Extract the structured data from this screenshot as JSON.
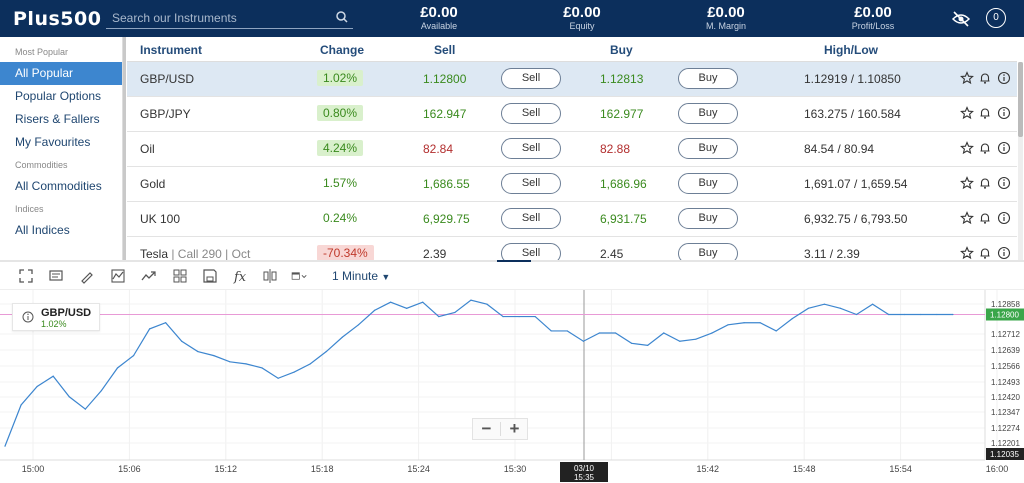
{
  "header": {
    "logo": "Plus500",
    "search_placeholder": "Search our Instruments",
    "stats": [
      {
        "value": "£0.00",
        "label": "Available"
      },
      {
        "value": "£0.00",
        "label": "Equity"
      },
      {
        "value": "£0.00",
        "label": "M. Margin"
      },
      {
        "value": "£0.00",
        "label": "Profit/Loss"
      }
    ],
    "notification_count": "0",
    "icons": [
      "search-icon",
      "eye-off-icon",
      "notifications-icon"
    ]
  },
  "sidebar": {
    "sections": [
      {
        "title": "Most Popular",
        "items": [
          {
            "label": "All Popular",
            "active": true
          },
          {
            "label": "Popular Options"
          },
          {
            "label": "Risers & Fallers"
          },
          {
            "label": "My Favourites"
          }
        ]
      },
      {
        "title": "Commodities",
        "items": [
          {
            "label": "All Commodities"
          }
        ]
      },
      {
        "title": "Indices",
        "items": [
          {
            "label": "All Indices"
          }
        ]
      }
    ]
  },
  "table": {
    "columns": {
      "instrument": "Instrument",
      "change": "Change",
      "sell": "Sell",
      "buy": "Buy",
      "high_low": "High/Low"
    },
    "sell_label": "Sell",
    "buy_label": "Buy",
    "rows": [
      {
        "name": "GBP/USD",
        "sub": "",
        "change": "1.02%",
        "change_style": "up",
        "sell": "1.12800",
        "buy": "1.12813",
        "price_style": "up",
        "high_low": "1.12919 / 1.10850",
        "selected": true
      },
      {
        "name": "GBP/JPY",
        "sub": "",
        "change": "0.80%",
        "change_style": "up",
        "sell": "162.947",
        "buy": "162.977",
        "price_style": "up",
        "high_low": "163.275 / 160.584"
      },
      {
        "name": "Oil",
        "sub": "",
        "change": "4.24%",
        "change_style": "up",
        "sell": "82.84",
        "buy": "82.88",
        "price_style": "down",
        "high_low": "84.54 / 80.94"
      },
      {
        "name": "Gold",
        "sub": "",
        "change": "1.57%",
        "change_style": "plain",
        "sell": "1,686.55",
        "buy": "1,686.96",
        "price_style": "up",
        "high_low": "1,691.07 / 1,659.54"
      },
      {
        "name": "UK 100",
        "sub": "",
        "change": "0.24%",
        "change_style": "plain",
        "sell": "6,929.75",
        "buy": "6,931.75",
        "price_style": "up",
        "high_low": "6,932.75 / 6,793.50"
      },
      {
        "name": "Tesla",
        "sub": " | Call 290 | Oct",
        "change": "-70.34%",
        "change_style": "down",
        "sell": "2.39",
        "buy": "2.45",
        "price_style": "neutral",
        "high_low": "3.11 / 2.39"
      }
    ],
    "row_action_icons": [
      "star-icon",
      "bell-icon",
      "info-icon"
    ]
  },
  "chart_toolbar": {
    "timeframe": "1 Minute",
    "icons": [
      "fullscreen-icon",
      "chat-icon",
      "draw-icon",
      "chart-type-icon",
      "indicators-icon",
      "layout-icon",
      "save-icon",
      "function-icon",
      "compare-icon",
      "calendar-icon"
    ]
  },
  "legend": {
    "symbol": "GBP/USD",
    "change": "1.02%"
  },
  "zoom": {
    "minus": "−",
    "plus": "+"
  },
  "chart_data": {
    "type": "line",
    "title": "",
    "series": [
      {
        "name": "GBP/USD",
        "color": "#3d86cf",
        "x": [
          "15:00",
          "15:01",
          "15:02",
          "15:03",
          "15:04",
          "15:05",
          "15:06",
          "15:07",
          "15:08",
          "15:09",
          "15:10",
          "15:11",
          "15:12",
          "15:13",
          "15:14",
          "15:15",
          "15:16",
          "15:17",
          "15:18",
          "15:19",
          "15:20",
          "15:21",
          "15:22",
          "15:23",
          "15:24",
          "15:25",
          "15:26",
          "15:27",
          "15:28",
          "15:29",
          "15:30",
          "15:31",
          "15:32",
          "15:33",
          "15:34",
          "15:35",
          "15:36",
          "15:37",
          "15:38",
          "15:39",
          "15:40",
          "15:41",
          "15:42",
          "15:43",
          "15:44",
          "15:45",
          "15:46",
          "15:47",
          "15:48",
          "15:49",
          "15:50",
          "15:51",
          "15:52",
          "15:53",
          "15:54",
          "15:55",
          "15:56",
          "15:57",
          "15:58",
          "15:59"
        ],
        "y": [
          1.1216,
          1.1236,
          1.1245,
          1.125,
          1.124,
          1.1234,
          1.1243,
          1.1254,
          1.126,
          1.1273,
          1.1276,
          1.1267,
          1.1262,
          1.126,
          1.1257,
          1.1256,
          1.1254,
          1.1249,
          1.1252,
          1.1256,
          1.1262,
          1.1269,
          1.1275,
          1.1282,
          1.1286,
          1.1283,
          1.1286,
          1.1279,
          1.1281,
          1.1287,
          1.1285,
          1.1279,
          1.1279,
          1.1279,
          1.1272,
          1.1272,
          1.1267,
          1.1271,
          1.1271,
          1.1266,
          1.1265,
          1.1271,
          1.1267,
          1.1268,
          1.1271,
          1.1275,
          1.1276,
          1.1276,
          1.1272,
          1.1278,
          1.1283,
          1.1285,
          1.1283,
          1.128,
          1.1285,
          1.128,
          1.128,
          1.128,
          1.128,
          1.128
        ]
      }
    ],
    "y_ticks": [
      "1.12858",
      "1.12712",
      "1.12639",
      "1.12566",
      "1.12493",
      "1.12420",
      "1.12347",
      "1.12274",
      "1.12201"
    ],
    "x_ticks": [
      "15:00",
      "15:06",
      "15:12",
      "15:18",
      "15:24",
      "15:30",
      "15:36",
      "15:42",
      "15:48",
      "15:54",
      "16:00"
    ],
    "ylim": [
      1.1218,
      1.1289
    ],
    "current_price": "1.12800",
    "low_label": "1.12035",
    "crosshair_label": [
      "03/10",
      "15:35"
    ],
    "grid": true
  }
}
